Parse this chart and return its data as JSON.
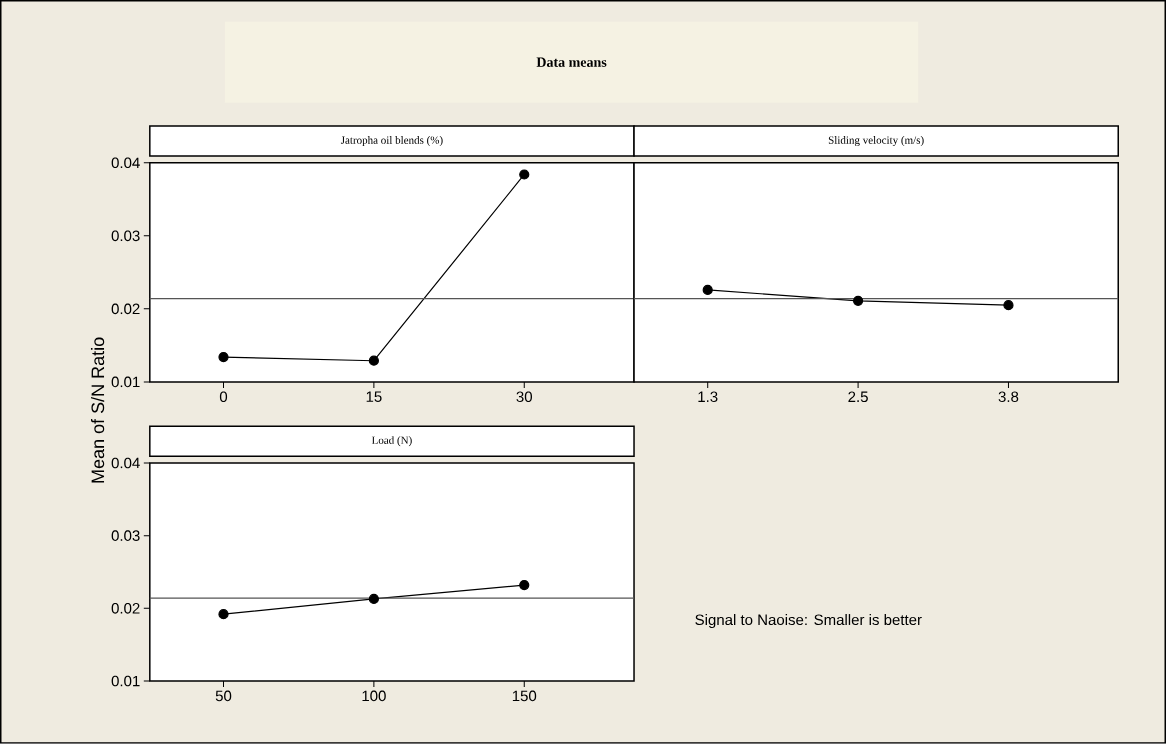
{
  "chart_data": [
    {
      "type": "line",
      "title": "Jatropha oil blends (%)",
      "ylabel": "Mean of S/N Ratio",
      "annotations": [
        "Data means"
      ],
      "categories": [
        "0",
        "15",
        "30"
      ],
      "values": [
        0.0134,
        0.0129,
        0.0384
      ],
      "color": "#000000",
      "marker": "circle",
      "ylim": [
        0.01,
        0.04
      ],
      "yticks": [
        0.01,
        0.02,
        0.03,
        0.04
      ],
      "ref_lines": [
        {
          "axis": "y",
          "value": 0.0214,
          "color": "#555555"
        }
      ]
    },
    {
      "type": "line",
      "title": "Sliding velocity (m/s)",
      "categories": [
        "1.3",
        "2.5",
        "3.8"
      ],
      "values": [
        0.0226,
        0.0211,
        0.0205
      ],
      "color": "#000000",
      "marker": "circle",
      "ylim": [
        0.01,
        0.04
      ],
      "yticks": [
        0.01,
        0.02,
        0.03,
        0.04
      ],
      "tick_labels": "x",
      "ref_lines": [
        {
          "axis": "y",
          "value": 0.0214,
          "color": "#555555"
        }
      ]
    },
    {
      "type": "line",
      "title": "Load (N)",
      "annotations": [
        "Signal to Naoise: Smaller is better"
      ],
      "categories": [
        "50",
        "100",
        "150"
      ],
      "values": [
        0.0192,
        0.0213,
        0.0232
      ],
      "color": "#000000",
      "marker": "circle",
      "ylim": [
        0.01,
        0.04
      ],
      "yticks": [
        0.01,
        0.02,
        0.03,
        0.04
      ],
      "ref_lines": [
        {
          "axis": "y",
          "value": 0.0214,
          "color": "#555555"
        }
      ]
    }
  ]
}
